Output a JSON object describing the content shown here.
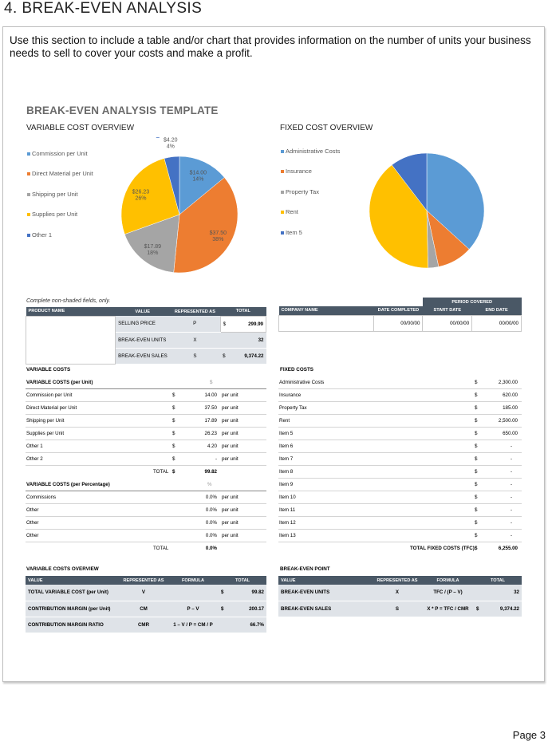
{
  "section_title": "4.  BREAK-EVEN ANALYSIS",
  "intro": "Use this section to include a table and/or chart that provides information on the number of units your business needs to sell to cover your costs and make a profit.",
  "template_title": "BREAK-EVEN ANALYSIS TEMPLATE",
  "variable_chart": {
    "title": "VARIABLE COST OVERVIEW",
    "legend": [
      "Commission per Unit",
      "Direct Material per Unit",
      "Shipping per Unit",
      "Supplies per Unit",
      "Other 1"
    ],
    "labels": [
      {
        "value": "$14.00",
        "pct": "14%"
      },
      {
        "value": "$37.50",
        "pct": "38%"
      },
      {
        "value": "$17.89",
        "pct": "18%"
      },
      {
        "value": "$26.23",
        "pct": "26%"
      },
      {
        "value": "$4.20",
        "pct": "4%"
      }
    ]
  },
  "fixed_chart": {
    "title": "FIXED COST OVERVIEW",
    "legend": [
      "Administrative Costs",
      "Insurance",
      "Property Tax",
      "Rent",
      "Item 5"
    ]
  },
  "chart_data": [
    {
      "type": "pie",
      "title": "VARIABLE COST OVERVIEW",
      "categories": [
        "Commission per Unit",
        "Direct Material per Unit",
        "Shipping per Unit",
        "Supplies per Unit",
        "Other 1"
      ],
      "values": [
        14.0,
        37.5,
        17.89,
        26.23,
        4.2
      ],
      "colors": [
        "#5b9bd5",
        "#ed7d31",
        "#a5a5a5",
        "#ffc000",
        "#4472c4"
      ]
    },
    {
      "type": "pie",
      "title": "FIXED COST OVERVIEW",
      "categories": [
        "Administrative Costs",
        "Insurance",
        "Property Tax",
        "Rent",
        "Item 5"
      ],
      "values": [
        2300.0,
        620.0,
        185.0,
        2500.0,
        650.0
      ],
      "colors": [
        "#5b9bd5",
        "#ed7d31",
        "#a5a5a5",
        "#ffc000",
        "#4472c4"
      ]
    }
  ],
  "note": "Complete non-shaded fields, only.",
  "product_table": {
    "headers": [
      "PRODUCT NAME",
      "VALUE",
      "REPRESENTED AS",
      "TOTAL"
    ],
    "rows": [
      {
        "value": "SELLING PRICE",
        "rep": "P",
        "cur": "$",
        "total": "299.99"
      },
      {
        "value": "BREAK-EVEN UNITS",
        "rep": "X",
        "cur": "",
        "total": "32"
      },
      {
        "value": "BREAK-EVEN SALES",
        "rep": "S",
        "cur": "$",
        "total": "9,374.22"
      }
    ]
  },
  "company_table": {
    "period": "PERIOD   COVERED",
    "headers": [
      "COMPANY NAME",
      "DATE COMPLETED",
      "START DATE",
      "END DATE"
    ],
    "row": [
      "",
      "00/00/00",
      "00/00/00",
      "00/00/00"
    ]
  },
  "variable_costs": {
    "heading": "VARIABLE COSTS",
    "unit_header": "VARIABLE COSTS (per Unit)",
    "unit_symbol": "$",
    "items": [
      {
        "label": "Commission per Unit",
        "cur": "$",
        "amount": "14.00",
        "unit": "per unit"
      },
      {
        "label": "Direct Material per Unit",
        "cur": "$",
        "amount": "37.50",
        "unit": "per unit"
      },
      {
        "label": "Shipping per Unit",
        "cur": "$",
        "amount": "17.89",
        "unit": "per unit"
      },
      {
        "label": "Supplies per Unit",
        "cur": "$",
        "amount": "26.23",
        "unit": "per unit"
      },
      {
        "label": "Other 1",
        "cur": "$",
        "amount": "4.20",
        "unit": "per unit"
      },
      {
        "label": "Other 2",
        "cur": "$",
        "amount": "-",
        "unit": "per unit"
      }
    ],
    "total_label": "TOTAL",
    "total_cur": "$",
    "total_amount": "99.82",
    "pct_header": "VARIABLE COSTS (per Percentage)",
    "pct_symbol": "%",
    "pct_items": [
      {
        "label": "Commissions",
        "amount": "0.0%",
        "unit": "per unit"
      },
      {
        "label": "Other",
        "amount": "0.0%",
        "unit": "per unit"
      },
      {
        "label": "Other",
        "amount": "0.0%",
        "unit": "per unit"
      },
      {
        "label": "Other",
        "amount": "0.0%",
        "unit": "per unit"
      }
    ],
    "pct_total_label": "TOTAL",
    "pct_total": "0.0%"
  },
  "fixed_costs": {
    "heading": "FIXED COSTS",
    "items": [
      {
        "label": "Administrative Costs",
        "cur": "$",
        "amount": "2,300.00"
      },
      {
        "label": "Insurance",
        "cur": "$",
        "amount": "620.00"
      },
      {
        "label": "Property Tax",
        "cur": "$",
        "amount": "185.00"
      },
      {
        "label": "Rent",
        "cur": "$",
        "amount": "2,500.00"
      },
      {
        "label": "Item 5",
        "cur": "$",
        "amount": "650.00"
      },
      {
        "label": "Item 6",
        "cur": "$",
        "amount": "-"
      },
      {
        "label": "Item 7",
        "cur": "$",
        "amount": "-"
      },
      {
        "label": "Item 8",
        "cur": "$",
        "amount": "-"
      },
      {
        "label": "Item 9",
        "cur": "$",
        "amount": "-"
      },
      {
        "label": "Item 10",
        "cur": "$",
        "amount": "-"
      },
      {
        "label": "Item 11",
        "cur": "$",
        "amount": "-"
      },
      {
        "label": "Item 12",
        "cur": "$",
        "amount": "-"
      },
      {
        "label": "Item 13",
        "cur": "$",
        "amount": "-"
      }
    ],
    "total_label": "TOTAL FIXED COSTS (TFC)",
    "total_cur": "$",
    "total_amount": "6,255.00"
  },
  "vc_overview": {
    "heading": "VARIABLE COSTS OVERVIEW",
    "headers": [
      "VALUE",
      "REPRESENTED AS",
      "FORMULA",
      "TOTAL"
    ],
    "rows": [
      {
        "value": "TOTAL VARIABLE COST (per Unit)",
        "rep": "V",
        "formula": "",
        "cur": "$",
        "total": "99.82"
      },
      {
        "value": "CONTRIBUTION MARGIN (per Unit)",
        "rep": "CM",
        "formula": "P – V",
        "cur": "$",
        "total": "200.17"
      },
      {
        "value": "CONTRIBUTION MARGIN RATIO",
        "rep": "CMR",
        "formula": "1 – V / P = CM / P",
        "cur": "",
        "total": "66.7%"
      }
    ]
  },
  "be_point": {
    "heading": "BREAK-EVEN POINT",
    "headers": [
      "VALUE",
      "REPRESENTED AS",
      "FORMULA",
      "TOTAL"
    ],
    "rows": [
      {
        "value": "BREAK-EVEN UNITS",
        "rep": "X",
        "formula": "TFC / (P – V)",
        "cur": "",
        "total": "32"
      },
      {
        "value": "BREAK-EVEN SALES",
        "rep": "S",
        "formula": "X * P = TFC / CMR",
        "cur": "$",
        "total": "9,374.22"
      }
    ]
  },
  "page": "Page 3"
}
